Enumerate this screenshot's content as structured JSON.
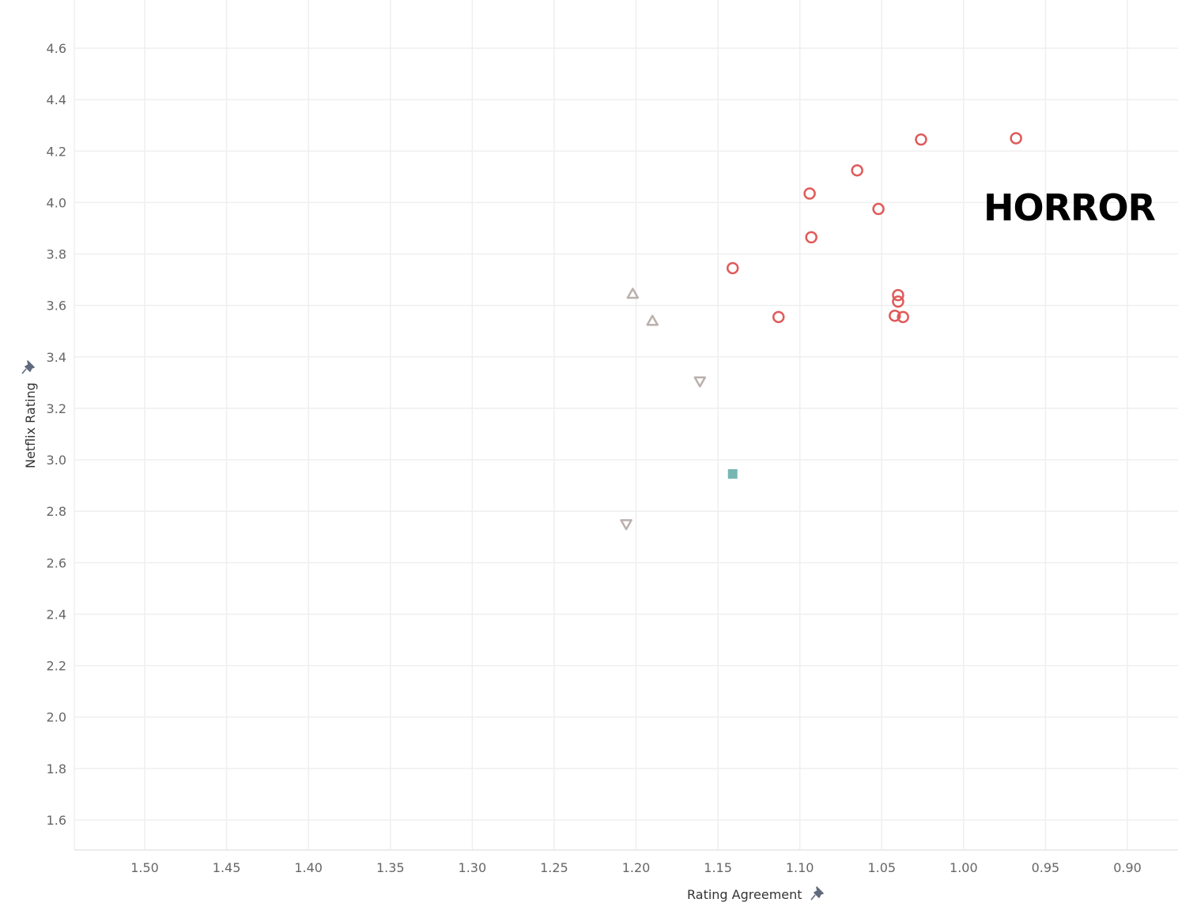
{
  "chart_data": {
    "type": "scatter",
    "xlabel": "Rating Agreement",
    "ylabel": "Netflix Rating",
    "x_reversed": true,
    "xlim": [
      1.545,
      0.865
    ],
    "ylim": [
      1.48,
      4.79
    ],
    "x_ticks": [
      1.5,
      1.45,
      1.4,
      1.35,
      1.3,
      1.25,
      1.2,
      1.15,
      1.1,
      1.05,
      1.0,
      0.95,
      0.9
    ],
    "x_tick_labels": [
      "1.50",
      "1.45",
      "1.40",
      "1.35",
      "1.30",
      "1.25",
      "1.20",
      "1.15",
      "1.10",
      "1.05",
      "1.00",
      "0.95",
      "0.90"
    ],
    "y_ticks": [
      1.6,
      1.8,
      2.0,
      2.2,
      2.4,
      2.6,
      2.8,
      3.0,
      3.2,
      3.4,
      3.6,
      3.8,
      4.0,
      4.2,
      4.4,
      4.6
    ],
    "y_tick_labels": [
      "1.6",
      "1.8",
      "2.0",
      "2.2",
      "2.4",
      "2.6",
      "2.8",
      "3.0",
      "3.2",
      "3.4",
      "3.6",
      "3.8",
      "4.0",
      "4.2",
      "4.4",
      "4.6"
    ],
    "grid": true,
    "annotation": "HORROR",
    "series": [
      {
        "marker": "circle",
        "color": "#e05a5a",
        "points": [
          {
            "x": 0.968,
            "y": 4.25
          },
          {
            "x": 1.026,
            "y": 4.245
          },
          {
            "x": 1.065,
            "y": 4.125
          },
          {
            "x": 1.094,
            "y": 4.035
          },
          {
            "x": 1.052,
            "y": 3.975
          },
          {
            "x": 1.093,
            "y": 3.865
          },
          {
            "x": 1.141,
            "y": 3.745
          },
          {
            "x": 1.04,
            "y": 3.64
          },
          {
            "x": 1.04,
            "y": 3.615
          },
          {
            "x": 1.113,
            "y": 3.555
          },
          {
            "x": 1.042,
            "y": 3.56
          },
          {
            "x": 1.037,
            "y": 3.555
          }
        ]
      },
      {
        "marker": "triangle-up",
        "color": "#bab0ac",
        "points": [
          {
            "x": 1.202,
            "y": 3.645
          },
          {
            "x": 1.19,
            "y": 3.54
          }
        ]
      },
      {
        "marker": "triangle-down",
        "color": "#bab0ac",
        "points": [
          {
            "x": 1.161,
            "y": 3.305
          },
          {
            "x": 1.206,
            "y": 2.75
          }
        ]
      },
      {
        "marker": "square",
        "color": "#76b7b2",
        "points": [
          {
            "x": 1.141,
            "y": 2.945
          }
        ]
      }
    ]
  },
  "icons": {
    "y_axis_pin": "pin-icon",
    "x_axis_pin": "pin-icon",
    "pin_color": "#5f6b7d"
  }
}
